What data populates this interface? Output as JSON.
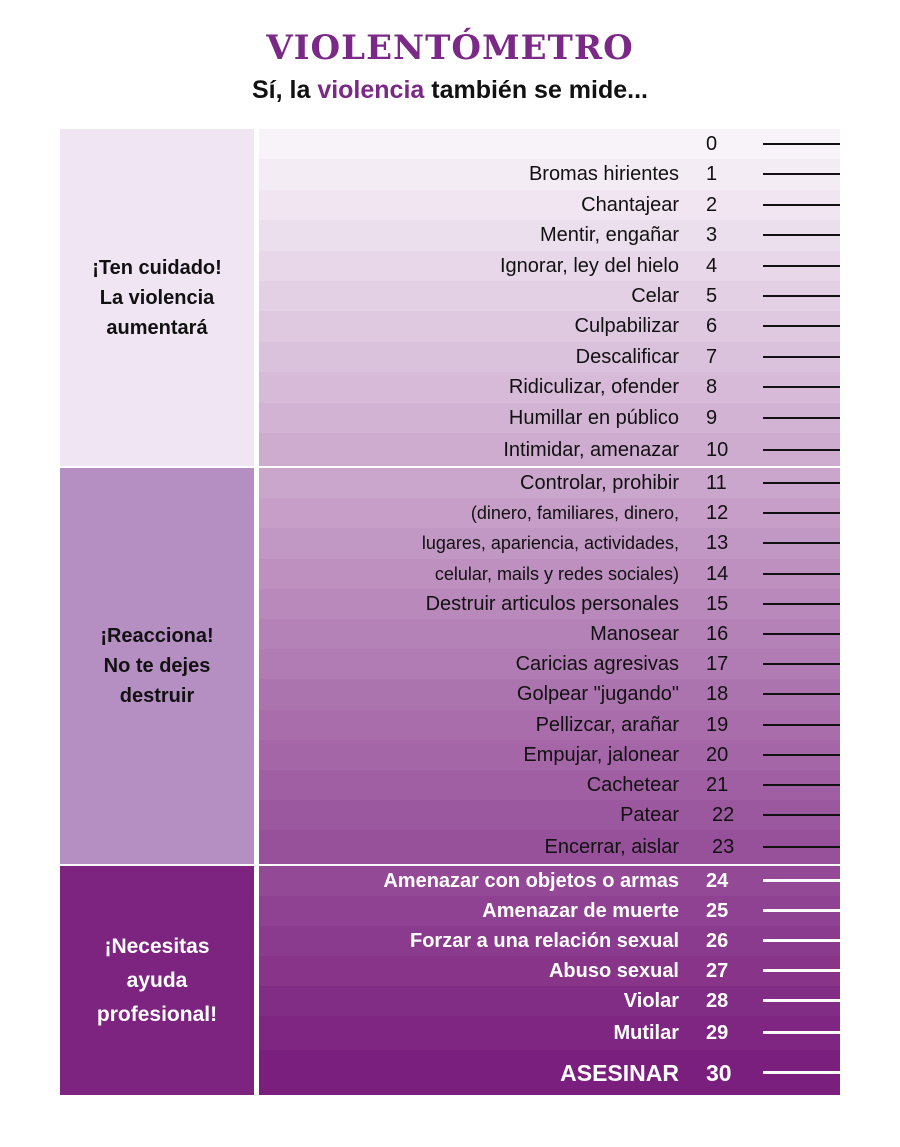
{
  "header": {
    "title": "VIOLENTÓMETRO",
    "subtitle_prefix": "Sí, la ",
    "subtitle_accent": "violencia",
    "subtitle_suffix": " también se mide..."
  },
  "colors": {
    "title": "#7a2a86",
    "section_1": "#f0e6f3",
    "section_2": "#b68fc2",
    "section_3": "#7c2480",
    "scale_start": "#f8f3f9",
    "scale_end": "#7a1f7d"
  },
  "sections": [
    {
      "label": "¡Ten cuidado!\nLa violencia\naumentará"
    },
    {
      "label": "¡Reacciona!\nNo te dejes\ndestruir"
    },
    {
      "label": "¡Necesitas\nayuda\nprofesional!"
    }
  ],
  "scale": [
    {
      "n": "0",
      "label": ""
    },
    {
      "n": "1",
      "label": "Bromas hirientes"
    },
    {
      "n": "2",
      "label": "Chantajear"
    },
    {
      "n": "3",
      "label": "Mentir, engañar"
    },
    {
      "n": "4",
      "label": "Ignorar, ley del hielo"
    },
    {
      "n": "5",
      "label": "Celar"
    },
    {
      "n": "6",
      "label": "Culpabilizar"
    },
    {
      "n": "7",
      "label": "Descalificar"
    },
    {
      "n": "8",
      "label": "Ridiculizar, ofender"
    },
    {
      "n": "9",
      "label": "Humillar en público"
    },
    {
      "n": "10",
      "label": "Intimidar, amenazar"
    },
    {
      "n": "11",
      "label": "Controlar, prohibir"
    },
    {
      "n": "12",
      "label": "(dinero, familiares, dinero,"
    },
    {
      "n": "13",
      "label": "lugares, apariencia, actividades,"
    },
    {
      "n": "14",
      "label": "celular, mails y redes sociales)"
    },
    {
      "n": "15",
      "label": "Destruir articulos personales"
    },
    {
      "n": "16",
      "label": "Manosear"
    },
    {
      "n": "17",
      "label": "Caricias agresivas"
    },
    {
      "n": "18",
      "label": "Golpear \"jugando\""
    },
    {
      "n": "19",
      "label": "Pellizcar, arañar"
    },
    {
      "n": "20",
      "label": "Empujar, jalonear"
    },
    {
      "n": "21",
      "label": "Cachetear"
    },
    {
      "n": "22",
      "label": "Patear"
    },
    {
      "n": "23",
      "label": "Encerrar, aislar"
    },
    {
      "n": "24",
      "label": "Amenazar con objetos o armas"
    },
    {
      "n": "25",
      "label": "Amenazar de muerte"
    },
    {
      "n": "26",
      "label": "Forzar a una relación sexual"
    },
    {
      "n": "27",
      "label": "Abuso sexual"
    },
    {
      "n": "28",
      "label": "Violar"
    },
    {
      "n": "29",
      "label": "Mutilar"
    },
    {
      "n": "30",
      "label": "ASESINAR"
    }
  ]
}
